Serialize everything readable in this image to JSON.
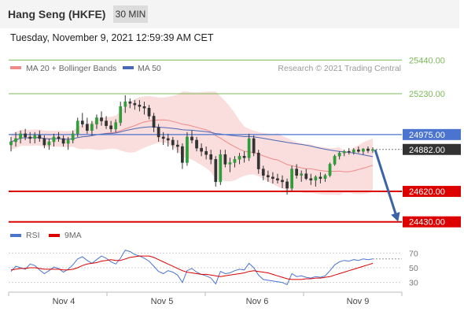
{
  "header": {
    "instrument": "Hang Seng (HKFE)",
    "timeframe": "30 MIN",
    "timestamp": "Tuesday, November 9, 2021 12:59:39 AM CET"
  },
  "legend": {
    "ma20": "MA 20 + Bollinger Bands",
    "ma50": "MA 50",
    "rsi": "RSI",
    "ma9": "9MA"
  },
  "credit": "Research © 2021 Trading Central",
  "colors": {
    "resistance": "#7cba59",
    "support": "#dd0000",
    "current": "#4a74d0",
    "last_price": "#333333",
    "ma20": "#f08a8a",
    "ma50": "#4a68b5",
    "bands": "#fad9d9",
    "forecast": "#3a62a6",
    "rsi": "#4a74d0",
    "rsi_ma": "#dd0000"
  },
  "chart_data": {
    "type": "candlestick",
    "ylim": [
      24340,
      25520
    ],
    "x_tick_labels": [
      "Nov 4",
      "Nov 5",
      "Nov 6",
      "Nov 9"
    ],
    "levels": [
      {
        "name": "resistance-2",
        "label": "25440.00",
        "value": 25440
      },
      {
        "name": "resistance-1",
        "label": "25230.00",
        "value": 25230
      },
      {
        "name": "current-level",
        "label": "24975.00",
        "value": 24975
      },
      {
        "name": "last-price",
        "label": "24882.00",
        "value": 24882
      },
      {
        "name": "support-1",
        "label": "24620.00",
        "value": 24620
      },
      {
        "name": "support-2",
        "label": "24430.00",
        "value": 24430
      }
    ],
    "forecast": {
      "from": 24880,
      "to": 24450
    },
    "candles": [
      [
        24910,
        24960,
        24870,
        24930
      ],
      [
        24930,
        24990,
        24900,
        24950
      ],
      [
        24950,
        25000,
        24920,
        24980
      ],
      [
        24980,
        25010,
        24940,
        24960
      ],
      [
        24960,
        24990,
        24920,
        24950
      ],
      [
        24950,
        24990,
        24920,
        24970
      ],
      [
        24970,
        25000,
        24930,
        24950
      ],
      [
        24950,
        24970,
        24890,
        24910
      ],
      [
        24910,
        24950,
        24880,
        24930
      ],
      [
        24930,
        24980,
        24900,
        24960
      ],
      [
        24960,
        24990,
        24930,
        24950
      ],
      [
        24950,
        24970,
        24900,
        24920
      ],
      [
        24920,
        24960,
        24880,
        24940
      ],
      [
        24940,
        25000,
        24920,
        24980
      ],
      [
        24980,
        25080,
        24960,
        25060
      ],
      [
        25060,
        25110,
        25020,
        25040
      ],
      [
        25040,
        25080,
        24980,
        25000
      ],
      [
        25000,
        25060,
        24970,
        25040
      ],
      [
        25040,
        25100,
        25010,
        25080
      ],
      [
        25080,
        25120,
        25030,
        25060
      ],
      [
        25060,
        25090,
        25010,
        25030
      ],
      [
        25030,
        25060,
        24990,
        25010
      ],
      [
        25010,
        25070,
        24990,
        25050
      ],
      [
        25050,
        25180,
        25030,
        25150
      ],
      [
        25150,
        25220,
        25110,
        25180
      ],
      [
        25180,
        25200,
        25140,
        25170
      ],
      [
        25170,
        25190,
        25130,
        25160
      ],
      [
        25160,
        25190,
        25120,
        25150
      ],
      [
        25150,
        25180,
        25100,
        25140
      ],
      [
        25140,
        25160,
        25070,
        25090
      ],
      [
        25090,
        25110,
        24990,
        25020
      ],
      [
        25020,
        25040,
        24930,
        24960
      ],
      [
        24960,
        24990,
        24910,
        24950
      ],
      [
        24950,
        24980,
        24900,
        24940
      ],
      [
        24940,
        24960,
        24880,
        24910
      ],
      [
        24910,
        24940,
        24860,
        24900
      ],
      [
        24900,
        24920,
        24760,
        24800
      ],
      [
        24800,
        24990,
        24780,
        24960
      ],
      [
        24960,
        25000,
        24920,
        24940
      ],
      [
        24940,
        24960,
        24870,
        24890
      ],
      [
        24890,
        24920,
        24840,
        24870
      ],
      [
        24870,
        24900,
        24820,
        24850
      ],
      [
        24850,
        24880,
        24790,
        24820
      ],
      [
        24820,
        24840,
        24650,
        24680
      ],
      [
        24680,
        24880,
        24660,
        24850
      ],
      [
        24850,
        24880,
        24770,
        24790
      ],
      [
        24790,
        24830,
        24740,
        24800
      ],
      [
        24800,
        24840,
        24770,
        24820
      ],
      [
        24820,
        24860,
        24790,
        24840
      ],
      [
        24840,
        24870,
        24800,
        24830
      ],
      [
        24830,
        24980,
        24810,
        24950
      ],
      [
        24950,
        24970,
        24840,
        24860
      ],
      [
        24860,
        24880,
        24730,
        24760
      ],
      [
        24760,
        24780,
        24690,
        24720
      ],
      [
        24720,
        24750,
        24680,
        24710
      ],
      [
        24710,
        24740,
        24670,
        24700
      ],
      [
        24700,
        24730,
        24670,
        24690
      ],
      [
        24690,
        24720,
        24640,
        24680
      ],
      [
        24680,
        24700,
        24600,
        24640
      ],
      [
        24640,
        24780,
        24620,
        24760
      ],
      [
        24760,
        24790,
        24700,
        24720
      ],
      [
        24720,
        24750,
        24680,
        24730
      ],
      [
        24730,
        24760,
        24690,
        24700
      ],
      [
        24700,
        24730,
        24660,
        24690
      ],
      [
        24690,
        24720,
        24650,
        24710
      ],
      [
        24710,
        24740,
        24670,
        24700
      ],
      [
        24700,
        24730,
        24680,
        24720
      ],
      [
        24720,
        24800,
        24710,
        24790
      ],
      [
        24790,
        24850,
        24780,
        24840
      ],
      [
        24840,
        24870,
        24820,
        24860
      ],
      [
        24860,
        24880,
        24840,
        24870
      ],
      [
        24870,
        24890,
        24850,
        24865
      ],
      [
        24865,
        24890,
        24850,
        24880
      ],
      [
        24880,
        24900,
        24860,
        24870
      ],
      [
        24870,
        24890,
        24850,
        24885
      ],
      [
        24885,
        24900,
        24860,
        24875
      ],
      [
        24875,
        24895,
        24860,
        24882
      ]
    ],
    "rsi": {
      "ylim": [
        20,
        80
      ],
      "ticks": [
        70,
        50,
        30
      ],
      "rsi_values": [
        45,
        52,
        50,
        48,
        55,
        53,
        47,
        42,
        46,
        51,
        49,
        44,
        48,
        54,
        62,
        65,
        60,
        56,
        61,
        66,
        63,
        58,
        55,
        63,
        74,
        72,
        68,
        66,
        63,
        59,
        52,
        45,
        42,
        46,
        44,
        40,
        30,
        46,
        49,
        44,
        41,
        39,
        36,
        28,
        45,
        42,
        43,
        46,
        48,
        47,
        56,
        50,
        40,
        34,
        33,
        32,
        31,
        30,
        27,
        42,
        38,
        39,
        37,
        36,
        38,
        37,
        39,
        46,
        54,
        58,
        60,
        59,
        61,
        60,
        62,
        61,
        62
      ],
      "ma_values": [
        47,
        48,
        49,
        49,
        50,
        50,
        49,
        48,
        48,
        48,
        48,
        47,
        47,
        48,
        50,
        53,
        55,
        56,
        57,
        59,
        60,
        61,
        60,
        60,
        62,
        64,
        65,
        66,
        66,
        66,
        64,
        61,
        58,
        55,
        52,
        49,
        46,
        44,
        43,
        42,
        41,
        41,
        40,
        39,
        38,
        39,
        40,
        41,
        42,
        43,
        45,
        46,
        45,
        44,
        43,
        41,
        39,
        37,
        35,
        34,
        34,
        34,
        35,
        35,
        36,
        36,
        37,
        38,
        40,
        42,
        44,
        46,
        48,
        50,
        52,
        54,
        56
      ]
    }
  }
}
